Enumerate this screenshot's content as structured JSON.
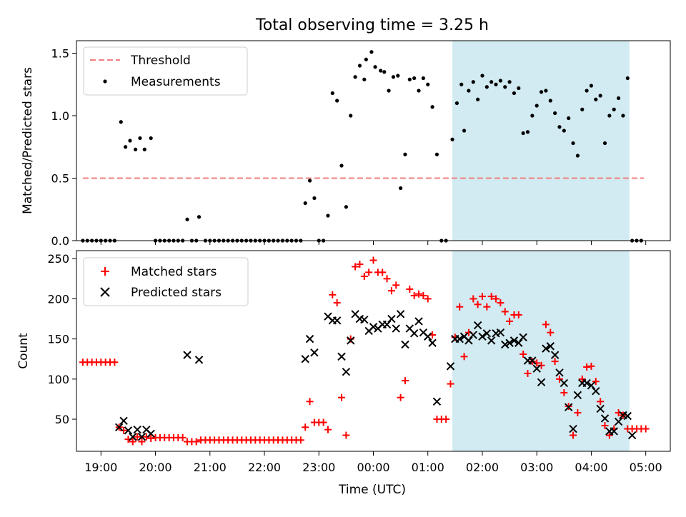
{
  "title": "Total observing time = 3.25 h",
  "colors": {
    "threshold": "#f08080",
    "measurements": "#000000",
    "matched": "#ff0000",
    "predicted": "#000000",
    "window": "#add8e6"
  },
  "chart_data": [
    {
      "type": "scatter",
      "ylabel": "Matched/Predicted stars",
      "xlim": [
        18.55,
        5.45
      ],
      "ylim": [
        0,
        1.6
      ],
      "yticks": [
        "0.0",
        "0.5",
        "1.0",
        "1.5"
      ],
      "xticks": [
        "19:00",
        "20:00",
        "21:00",
        "22:00",
        "23:00",
        "00:00",
        "01:00",
        "02:00",
        "03:00",
        "04:00",
        "05:00"
      ],
      "shaded_window": [
        "01:27",
        "04:42"
      ],
      "legend": {
        "position": "upper-left",
        "threshold": "Threshold",
        "measurements": "Measurements"
      },
      "threshold": {
        "y": 0.5,
        "x_from": "18:40",
        "x_to": "04:58"
      },
      "measurements": [
        [
          "18:40",
          0
        ],
        [
          "18:45",
          0
        ],
        [
          "18:50",
          0
        ],
        [
          "18:55",
          0
        ],
        [
          "19:00",
          0
        ],
        [
          "19:05",
          0
        ],
        [
          "19:10",
          0
        ],
        [
          "19:15",
          0
        ],
        [
          "19:22",
          0.95
        ],
        [
          "19:27",
          0.75
        ],
        [
          "19:32",
          0.8
        ],
        [
          "19:38",
          0.73
        ],
        [
          "19:43",
          0.82
        ],
        [
          "19:48",
          0.73
        ],
        [
          "19:55",
          0.82
        ],
        [
          "20:00",
          0
        ],
        [
          "20:05",
          0
        ],
        [
          "20:10",
          0
        ],
        [
          "20:15",
          0
        ],
        [
          "20:20",
          0
        ],
        [
          "20:25",
          0
        ],
        [
          "20:30",
          0
        ],
        [
          "20:35",
          0.17
        ],
        [
          "20:40",
          0
        ],
        [
          "20:45",
          0
        ],
        [
          "20:48",
          0.19
        ],
        [
          "20:55",
          0
        ],
        [
          "21:00",
          0
        ],
        [
          "21:05",
          0
        ],
        [
          "21:10",
          0
        ],
        [
          "21:15",
          0
        ],
        [
          "21:20",
          0
        ],
        [
          "21:25",
          0
        ],
        [
          "21:30",
          0
        ],
        [
          "21:35",
          0
        ],
        [
          "21:40",
          0
        ],
        [
          "21:45",
          0
        ],
        [
          "21:50",
          0
        ],
        [
          "21:55",
          0
        ],
        [
          "22:00",
          0
        ],
        [
          "22:05",
          0
        ],
        [
          "22:10",
          0
        ],
        [
          "22:15",
          0
        ],
        [
          "22:20",
          0
        ],
        [
          "22:25",
          0
        ],
        [
          "22:30",
          0
        ],
        [
          "22:35",
          0
        ],
        [
          "22:40",
          0
        ],
        [
          "22:45",
          0.3
        ],
        [
          "22:50",
          0.48
        ],
        [
          "22:55",
          0.34
        ],
        [
          "23:00",
          0
        ],
        [
          "23:05",
          0
        ],
        [
          "23:10",
          0.2
        ],
        [
          "23:15",
          1.18
        ],
        [
          "23:20",
          1.12
        ],
        [
          "23:25",
          0.6
        ],
        [
          "23:30",
          0.27
        ],
        [
          "23:35",
          1.0
        ],
        [
          "23:40",
          1.31
        ],
        [
          "23:45",
          1.4
        ],
        [
          "23:50",
          1.29
        ],
        [
          "23:52",
          1.45
        ],
        [
          "23:58",
          1.51
        ],
        [
          "00:02",
          1.39
        ],
        [
          "00:08",
          1.36
        ],
        [
          "00:12",
          1.35
        ],
        [
          "00:17",
          1.2
        ],
        [
          "00:22",
          1.31
        ],
        [
          "00:27",
          1.32
        ],
        [
          "00:30",
          0.42
        ],
        [
          "00:35",
          0.69
        ],
        [
          "00:40",
          1.29
        ],
        [
          "00:45",
          1.3
        ],
        [
          "00:50",
          1.2
        ],
        [
          "00:55",
          1.3
        ],
        [
          "01:00",
          1.25
        ],
        [
          "01:05",
          1.07
        ],
        [
          "01:10",
          0.69
        ],
        [
          "01:15",
          0
        ],
        [
          "01:20",
          0
        ],
        [
          "01:27",
          0.81
        ],
        [
          "01:32",
          1.1
        ],
        [
          "01:37",
          1.25
        ],
        [
          "01:40",
          0.88
        ],
        [
          "01:45",
          1.2
        ],
        [
          "01:50",
          1.27
        ],
        [
          "01:55",
          1.13
        ],
        [
          "02:00",
          1.32
        ],
        [
          "02:05",
          1.23
        ],
        [
          "02:10",
          1.27
        ],
        [
          "02:15",
          1.25
        ],
        [
          "02:20",
          1.28
        ],
        [
          "02:25",
          1.23
        ],
        [
          "02:30",
          1.27
        ],
        [
          "02:35",
          1.18
        ],
        [
          "02:40",
          1.22
        ],
        [
          "02:45",
          0.86
        ],
        [
          "02:50",
          0.87
        ],
        [
          "02:55",
          1.0
        ],
        [
          "03:00",
          1.08
        ],
        [
          "03:05",
          1.19
        ],
        [
          "03:10",
          1.2
        ],
        [
          "03:15",
          1.12
        ],
        [
          "03:20",
          1.02
        ],
        [
          "03:25",
          0.91
        ],
        [
          "03:30",
          0.88
        ],
        [
          "03:35",
          0.98
        ],
        [
          "03:40",
          0.78
        ],
        [
          "03:45",
          0.68
        ],
        [
          "03:50",
          1.05
        ],
        [
          "03:55",
          1.2
        ],
        [
          "04:00",
          1.24
        ],
        [
          "04:05",
          1.13
        ],
        [
          "04:10",
          1.16
        ],
        [
          "04:15",
          0.78
        ],
        [
          "04:20",
          1.0
        ],
        [
          "04:25",
          1.05
        ],
        [
          "04:30",
          1.14
        ],
        [
          "04:35",
          1.0
        ],
        [
          "04:40",
          1.3
        ],
        [
          "04:45",
          0
        ],
        [
          "04:50",
          0
        ],
        [
          "04:55",
          0
        ]
      ]
    },
    {
      "type": "scatter",
      "ylabel": "Count",
      "xlabel": "Time (UTC)",
      "xlim": [
        18.55,
        5.45
      ],
      "ylim": [
        10,
        260
      ],
      "yticks": [
        "50",
        "100",
        "150",
        "200",
        "250"
      ],
      "xticks": [
        "19:00",
        "20:00",
        "21:00",
        "22:00",
        "23:00",
        "00:00",
        "01:00",
        "02:00",
        "03:00",
        "04:00",
        "05:00"
      ],
      "shaded_window": [
        "01:27",
        "04:42"
      ],
      "legend": {
        "position": "upper-left",
        "matched": "Matched stars",
        "predicted": "Predicted stars"
      },
      "matched": [
        [
          "18:40",
          121
        ],
        [
          "18:45",
          121
        ],
        [
          "18:50",
          121
        ],
        [
          "18:55",
          121
        ],
        [
          "19:00",
          121
        ],
        [
          "19:05",
          121
        ],
        [
          "19:10",
          121
        ],
        [
          "19:15",
          121
        ],
        [
          "19:20",
          40
        ],
        [
          "19:25",
          36
        ],
        [
          "19:30",
          25
        ],
        [
          "19:35",
          22
        ],
        [
          "19:40",
          28
        ],
        [
          "19:45",
          22
        ],
        [
          "19:50",
          28
        ],
        [
          "19:55",
          26
        ],
        [
          "20:00",
          27
        ],
        [
          "20:05",
          27
        ],
        [
          "20:10",
          27
        ],
        [
          "20:15",
          27
        ],
        [
          "20:20",
          27
        ],
        [
          "20:25",
          27
        ],
        [
          "20:30",
          27
        ],
        [
          "20:35",
          22
        ],
        [
          "20:40",
          22
        ],
        [
          "20:45",
          22
        ],
        [
          "20:50",
          24
        ],
        [
          "20:55",
          24
        ],
        [
          "21:00",
          24
        ],
        [
          "21:05",
          24
        ],
        [
          "21:10",
          24
        ],
        [
          "21:15",
          24
        ],
        [
          "21:20",
          24
        ],
        [
          "21:25",
          24
        ],
        [
          "21:30",
          24
        ],
        [
          "21:35",
          24
        ],
        [
          "21:40",
          24
        ],
        [
          "21:45",
          24
        ],
        [
          "21:50",
          24
        ],
        [
          "21:55",
          24
        ],
        [
          "22:00",
          24
        ],
        [
          "22:05",
          24
        ],
        [
          "22:10",
          24
        ],
        [
          "22:15",
          24
        ],
        [
          "22:20",
          24
        ],
        [
          "22:25",
          24
        ],
        [
          "22:30",
          24
        ],
        [
          "22:35",
          24
        ],
        [
          "22:40",
          24
        ],
        [
          "22:45",
          40
        ],
        [
          "22:50",
          72
        ],
        [
          "22:55",
          46
        ],
        [
          "23:00",
          46
        ],
        [
          "23:05",
          46
        ],
        [
          "23:10",
          37
        ],
        [
          "23:15",
          205
        ],
        [
          "23:20",
          195
        ],
        [
          "23:25",
          77
        ],
        [
          "23:30",
          30
        ],
        [
          "23:35",
          150
        ],
        [
          "23:40",
          240
        ],
        [
          "23:45",
          243
        ],
        [
          "23:50",
          228
        ],
        [
          "23:55",
          233
        ],
        [
          "00:00",
          248
        ],
        [
          "00:05",
          233
        ],
        [
          "00:10",
          233
        ],
        [
          "00:15",
          225
        ],
        [
          "00:20",
          210
        ],
        [
          "00:25",
          217
        ],
        [
          "00:30",
          77
        ],
        [
          "00:35",
          98
        ],
        [
          "00:40",
          212
        ],
        [
          "00:45",
          204
        ],
        [
          "00:50",
          206
        ],
        [
          "00:55",
          204
        ],
        [
          "01:00",
          200
        ],
        [
          "01:05",
          155
        ],
        [
          "01:10",
          50
        ],
        [
          "01:15",
          50
        ],
        [
          "01:20",
          50
        ],
        [
          "01:25",
          94
        ],
        [
          "01:30",
          152
        ],
        [
          "01:35",
          190
        ],
        [
          "01:40",
          128
        ],
        [
          "01:45",
          158
        ],
        [
          "01:50",
          200
        ],
        [
          "01:55",
          193
        ],
        [
          "02:00",
          203
        ],
        [
          "02:05",
          190
        ],
        [
          "02:10",
          203
        ],
        [
          "02:15",
          200
        ],
        [
          "02:20",
          195
        ],
        [
          "02:25",
          184
        ],
        [
          "02:30",
          172
        ],
        [
          "02:35",
          180
        ],
        [
          "02:40",
          180
        ],
        [
          "02:45",
          131
        ],
        [
          "02:50",
          107
        ],
        [
          "02:55",
          122
        ],
        [
          "03:00",
          120
        ],
        [
          "03:05",
          117
        ],
        [
          "03:10",
          168
        ],
        [
          "03:15",
          158
        ],
        [
          "03:20",
          122
        ],
        [
          "03:25",
          100
        ],
        [
          "03:30",
          83
        ],
        [
          "03:35",
          66
        ],
        [
          "03:40",
          30
        ],
        [
          "03:45",
          58
        ],
        [
          "03:50",
          100
        ],
        [
          "03:55",
          115
        ],
        [
          "04:00",
          116
        ],
        [
          "04:05",
          97
        ],
        [
          "04:10",
          72
        ],
        [
          "04:15",
          42
        ],
        [
          "04:20",
          30
        ],
        [
          "04:25",
          38
        ],
        [
          "04:30",
          58
        ],
        [
          "04:35",
          55
        ],
        [
          "04:40",
          38
        ],
        [
          "04:45",
          38
        ],
        [
          "04:50",
          38
        ],
        [
          "04:55",
          38
        ],
        [
          "05:00",
          38
        ]
      ],
      "predicted": [
        [
          "19:20",
          40
        ],
        [
          "19:25",
          48
        ],
        [
          "19:30",
          36
        ],
        [
          "19:35",
          28
        ],
        [
          "19:40",
          37
        ],
        [
          "19:45",
          28
        ],
        [
          "19:50",
          37
        ],
        [
          "19:55",
          32
        ],
        [
          "20:35",
          130
        ],
        [
          "20:48",
          124
        ],
        [
          "22:45",
          125
        ],
        [
          "22:50",
          150
        ],
        [
          "22:55",
          133
        ],
        [
          "23:10",
          178
        ],
        [
          "23:15",
          173
        ],
        [
          "23:20",
          173
        ],
        [
          "23:25",
          128
        ],
        [
          "23:30",
          109
        ],
        [
          "23:35",
          148
        ],
        [
          "23:40",
          181
        ],
        [
          "23:45",
          175
        ],
        [
          "23:50",
          174
        ],
        [
          "23:55",
          160
        ],
        [
          "00:00",
          165
        ],
        [
          "00:05",
          163
        ],
        [
          "00:10",
          168
        ],
        [
          "00:15",
          168
        ],
        [
          "00:20",
          175
        ],
        [
          "00:25",
          163
        ],
        [
          "00:30",
          181
        ],
        [
          "00:35",
          143
        ],
        [
          "00:40",
          163
        ],
        [
          "00:45",
          157
        ],
        [
          "00:50",
          172
        ],
        [
          "00:55",
          158
        ],
        [
          "01:00",
          153
        ],
        [
          "01:05",
          145
        ],
        [
          "01:10",
          72
        ],
        [
          "01:25",
          116
        ],
        [
          "01:30",
          150
        ],
        [
          "01:35",
          150
        ],
        [
          "01:40",
          153
        ],
        [
          "01:45",
          148
        ],
        [
          "01:50",
          155
        ],
        [
          "01:55",
          167
        ],
        [
          "02:00",
          153
        ],
        [
          "02:05",
          157
        ],
        [
          "02:10",
          148
        ],
        [
          "02:15",
          157
        ],
        [
          "02:20",
          158
        ],
        [
          "02:25",
          143
        ],
        [
          "02:30",
          145
        ],
        [
          "02:35",
          148
        ],
        [
          "02:40",
          145
        ],
        [
          "02:45",
          152
        ],
        [
          "02:50",
          123
        ],
        [
          "02:55",
          123
        ],
        [
          "03:00",
          113
        ],
        [
          "03:05",
          96
        ],
        [
          "03:10",
          138
        ],
        [
          "03:15",
          141
        ],
        [
          "03:20",
          130
        ],
        [
          "03:25",
          108
        ],
        [
          "03:30",
          95
        ],
        [
          "03:35",
          65
        ],
        [
          "03:40",
          38
        ],
        [
          "03:45",
          80
        ],
        [
          "03:50",
          95
        ],
        [
          "03:55",
          95
        ],
        [
          "04:00",
          92
        ],
        [
          "04:05",
          85
        ],
        [
          "04:10",
          63
        ],
        [
          "04:15",
          51
        ],
        [
          "04:20",
          35
        ],
        [
          "04:25",
          35
        ],
        [
          "04:30",
          47
        ],
        [
          "04:35",
          55
        ],
        [
          "04:40",
          54
        ],
        [
          "04:45",
          30
        ]
      ]
    }
  ]
}
